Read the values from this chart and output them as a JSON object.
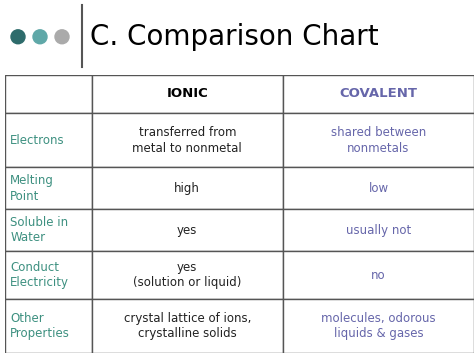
{
  "title": "C. Comparison Chart",
  "title_fontsize": 20,
  "title_color": "#000000",
  "background_color": "#ffffff",
  "dot_colors": [
    "#2d6b6b",
    "#5fa8a8",
    "#aaaaaa"
  ],
  "header_row": [
    "",
    "IONIC",
    "COVALENT"
  ],
  "header_ionic_color": "#000000",
  "header_covalent_color": "#6666aa",
  "rows": [
    {
      "label": "Electrons",
      "ionic": "transferred from\nmetal to nonmetal",
      "covalent": "shared between\nnonmetals"
    },
    {
      "label": "Melting\nPoint",
      "ionic": "high",
      "covalent": "low"
    },
    {
      "label": "Soluble in\nWater",
      "ionic": "yes",
      "covalent": "usually not"
    },
    {
      "label": "Conduct\nElectricity",
      "ionic": "yes\n(solution or liquid)",
      "covalent": "no"
    },
    {
      "label": "Other\nProperties",
      "ionic": "crystal lattice of ions,\ncrystalline solids",
      "covalent": "molecules, odorous\nliquids & gases"
    }
  ],
  "label_color": "#3d9080",
  "ionic_text_color": "#222222",
  "covalent_text_color": "#6666aa",
  "border_color": "#555555",
  "table_fontsize": 8.5,
  "label_fontsize": 8.5,
  "header_fontsize": 9.5
}
